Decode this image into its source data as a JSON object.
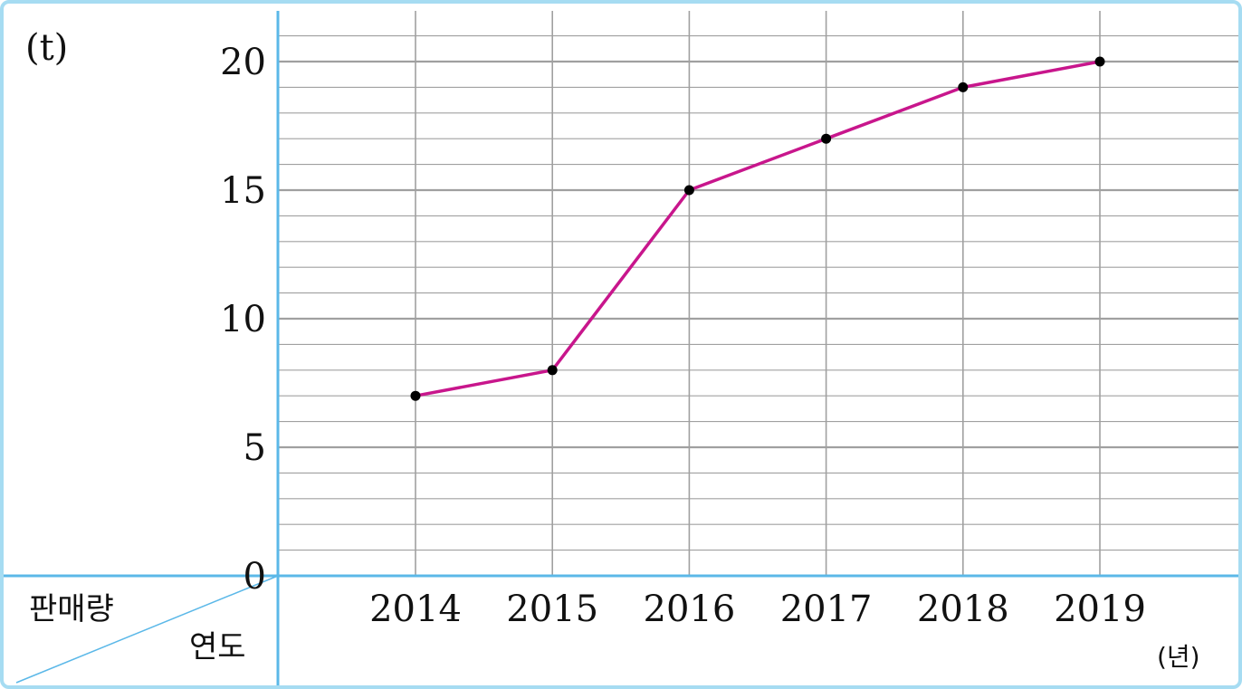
{
  "chart_data": {
    "type": "line",
    "x": [
      "2014",
      "2015",
      "2016",
      "2017",
      "2018",
      "2019"
    ],
    "series": [
      {
        "values": [
          7,
          8,
          15,
          17,
          19,
          20
        ]
      }
    ],
    "ylim": [
      0,
      20
    ],
    "yticks": [
      "0",
      "5",
      "10",
      "15",
      "20"
    ],
    "y_unit": "(t)",
    "x_unit": "(년)",
    "corner_top_label": "판매량",
    "corner_bottom_label": "연도",
    "grid": true,
    "colors": {
      "line": "#c8168c",
      "point": "#000000",
      "axis": "#5bb8e8",
      "grid": "#a0a0a0",
      "border": "#a6dcf2"
    }
  }
}
